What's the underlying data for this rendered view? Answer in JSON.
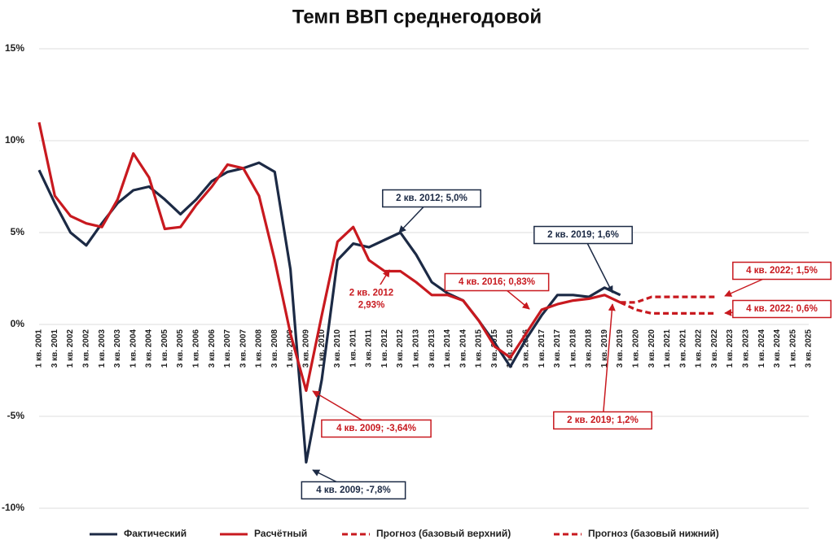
{
  "chart_data": {
    "type": "line",
    "title": "Темп ВВП среднегодовой",
    "categories": [
      "1 кв. 2001",
      "3 кв. 2001",
      "1 кв. 2002",
      "3 кв. 2002",
      "1 кв. 2003",
      "3 кв. 2003",
      "1 кв. 2004",
      "3 кв. 2004",
      "1 кв. 2005",
      "3 кв. 2005",
      "1 кв. 2006",
      "3 кв. 2006",
      "1 кв. 2007",
      "3 кв. 2007",
      "1 кв. 2008",
      "3 кв. 2008",
      "1 кв. 2009",
      "3 кв. 2009",
      "1 кв. 2010",
      "3 кв. 2010",
      "1 кв. 2011",
      "3 кв. 2011",
      "1 кв. 2012",
      "3 кв. 2012",
      "1 кв. 2013",
      "3 кв. 2013",
      "1 кв. 2014",
      "3 кв. 2014",
      "1 кв. 2015",
      "3 кв. 2015",
      "1 кв. 2016",
      "3 кв. 2016",
      "1 кв. 2017",
      "3 кв. 2017",
      "1 кв. 2018",
      "3 кв. 2018",
      "1 кв. 2019",
      "3 кв. 2019",
      "1 кв. 2020",
      "3 кв. 2020",
      "1 кв. 2021",
      "3 кв. 2021",
      "1 кв. 2022",
      "3 кв. 2022",
      "1 кв. 2023",
      "3 кв. 2023",
      "1 кв. 2024",
      "3 кв. 2024",
      "1 кв. 2025",
      "3 кв. 2025"
    ],
    "series": [
      {
        "name": "Фактический",
        "color": "#1c2a45",
        "style": "solid",
        "values": [
          8.4,
          6.6,
          5.0,
          4.3,
          5.5,
          6.6,
          7.3,
          7.5,
          6.8,
          6.0,
          6.8,
          7.8,
          8.3,
          8.5,
          8.8,
          8.3,
          3.0,
          -7.5,
          -3.0,
          3.5,
          4.4,
          4.2,
          4.6,
          5.0,
          3.8,
          2.3,
          1.7,
          1.3,
          0.2,
          -1.0,
          -2.3,
          -0.8,
          0.5,
          1.6,
          1.6,
          1.5,
          2.0,
          1.6,
          null,
          null,
          null,
          null,
          null,
          null,
          null,
          null,
          null,
          null,
          null,
          null
        ]
      },
      {
        "name": "Расчётный",
        "color": "#c8191f",
        "style": "solid",
        "values": [
          11.0,
          7.0,
          5.9,
          5.5,
          5.3,
          6.8,
          9.3,
          8.0,
          5.2,
          5.3,
          6.5,
          7.5,
          8.7,
          8.5,
          7.0,
          3.5,
          -0.5,
          -3.6,
          0.5,
          4.5,
          5.3,
          3.5,
          2.9,
          2.9,
          2.3,
          1.6,
          1.6,
          1.3,
          0.2,
          -1.2,
          -1.8,
          -0.5,
          0.8,
          1.1,
          1.3,
          1.4,
          1.6,
          1.2,
          null,
          null,
          null,
          null,
          null,
          null,
          null,
          null,
          null,
          null,
          null,
          null
        ]
      },
      {
        "name": "Прогноз (базовый верхний)",
        "color": "#c8191f",
        "style": "dashed",
        "values": [
          null,
          null,
          null,
          null,
          null,
          null,
          null,
          null,
          null,
          null,
          null,
          null,
          null,
          null,
          null,
          null,
          null,
          null,
          null,
          null,
          null,
          null,
          null,
          null,
          null,
          null,
          null,
          null,
          null,
          null,
          null,
          null,
          null,
          null,
          null,
          null,
          null,
          1.2,
          1.2,
          1.5,
          1.5,
          1.5,
          1.5,
          1.5,
          null,
          null,
          null,
          null,
          null,
          null
        ]
      },
      {
        "name": "Прогноз (базовый нижний)",
        "color": "#c8191f",
        "style": "dashed",
        "values": [
          null,
          null,
          null,
          null,
          null,
          null,
          null,
          null,
          null,
          null,
          null,
          null,
          null,
          null,
          null,
          null,
          null,
          null,
          null,
          null,
          null,
          null,
          null,
          null,
          null,
          null,
          null,
          null,
          null,
          null,
          null,
          null,
          null,
          null,
          null,
          null,
          null,
          1.2,
          0.8,
          0.6,
          0.6,
          0.6,
          0.6,
          0.6,
          null,
          null,
          null,
          null,
          null,
          null
        ]
      }
    ],
    "ylim": [
      -10,
      15
    ],
    "yticks": [
      {
        "value": -10,
        "label": "-10%"
      },
      {
        "value": -5,
        "label": "-5%"
      },
      {
        "value": 0,
        "label": "0%"
      },
      {
        "value": 5,
        "label": "5%"
      },
      {
        "value": 10,
        "label": "10%"
      },
      {
        "value": 15,
        "label": "15%"
      }
    ],
    "grid": true,
    "legend": "bottom",
    "annotations": [
      {
        "lines": [
          "2 кв. 2012; 5,0%"
        ],
        "color": "#1c2a45"
      },
      {
        "lines": [
          "2 кв. 2019; 1,6%"
        ],
        "color": "#1c2a45"
      },
      {
        "lines": [
          "4 кв. 2022; 1,5%"
        ],
        "color": "#c8191f"
      },
      {
        "lines": [
          "4 кв. 2022; 0,6%"
        ],
        "color": "#c8191f"
      },
      {
        "lines": [
          "2 кв. 2012",
          "2,93%"
        ],
        "color": "#c8191f"
      },
      {
        "lines": [
          "4 кв. 2016; 0,83%"
        ],
        "color": "#c8191f"
      },
      {
        "lines": [
          "4 кв. 2009; -3,64%"
        ],
        "color": "#c8191f"
      },
      {
        "lines": [
          "4 кв. 2009; -7,8%"
        ],
        "color": "#1c2a45"
      },
      {
        "lines": [
          "2 кв. 2019; 1,2%"
        ],
        "color": "#c8191f"
      }
    ]
  }
}
